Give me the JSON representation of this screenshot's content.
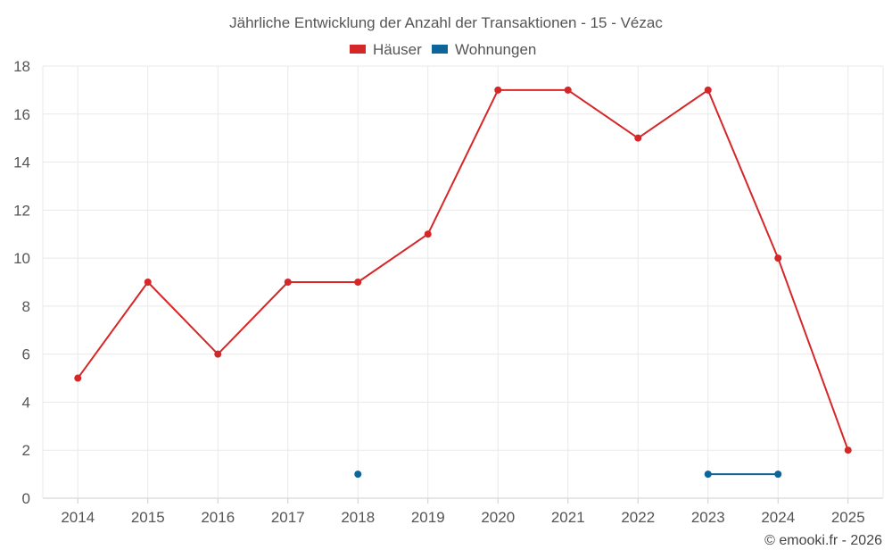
{
  "chart_data": {
    "type": "line",
    "title": "Jährliche Entwicklung der Anzahl der Transaktionen - 15 - Vézac",
    "categories": [
      "2014",
      "2015",
      "2016",
      "2017",
      "2018",
      "2019",
      "2020",
      "2021",
      "2022",
      "2023",
      "2024",
      "2025"
    ],
    "ylim": [
      0,
      18
    ],
    "yticks": [
      0,
      2,
      4,
      6,
      8,
      10,
      12,
      14,
      16,
      18
    ],
    "grid": true,
    "legend_position": "top-center",
    "series": [
      {
        "name": "Häuser",
        "color": "#d62728",
        "values": [
          5,
          9,
          6,
          9,
          9,
          11,
          17,
          17,
          15,
          17,
          10,
          2
        ]
      },
      {
        "name": "Wohnungen",
        "color": "#0d6599",
        "values": [
          null,
          null,
          null,
          null,
          1,
          null,
          null,
          null,
          null,
          1,
          1,
          null
        ]
      }
    ],
    "credit": "© emooki.fr - 2026"
  }
}
